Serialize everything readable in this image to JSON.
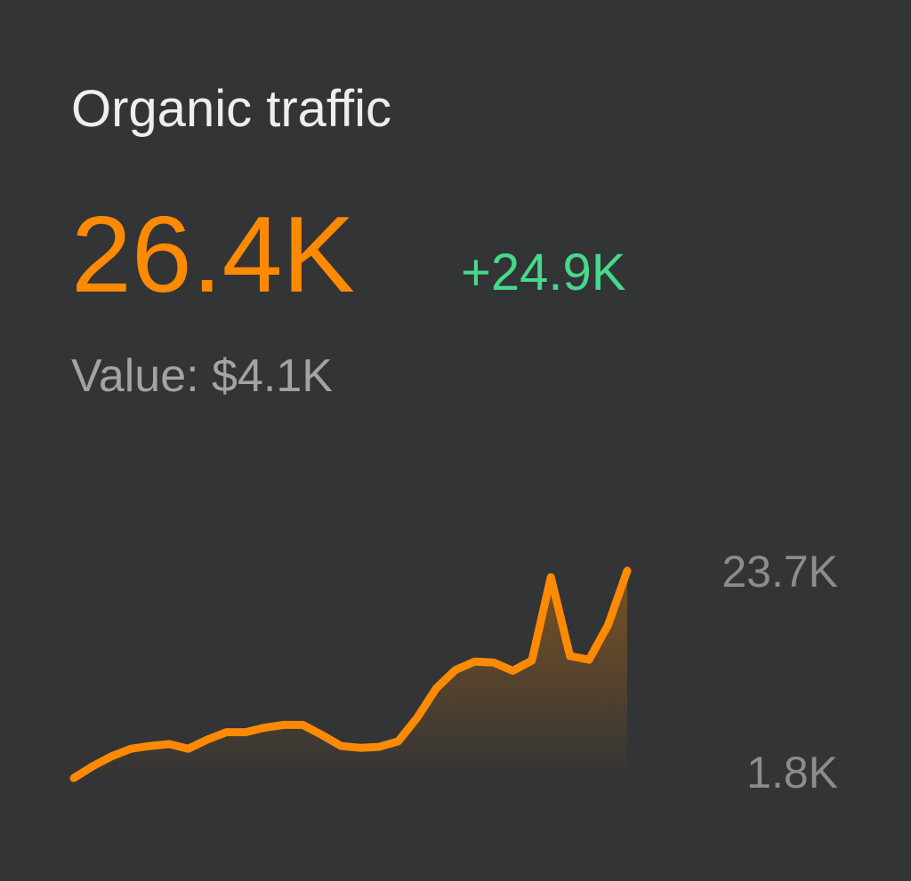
{
  "chart_data": {
    "type": "area",
    "title": "Organic traffic",
    "headline": "26.4K",
    "change": "+24.9K",
    "subtitle": "Value: $4.1K",
    "values": [
      1100,
      2400,
      3500,
      4300,
      4600,
      4800,
      4300,
      5300,
      6100,
      6100,
      6600,
      6900,
      6900,
      5800,
      4600,
      4400,
      4500,
      5100,
      7700,
      10900,
      12900,
      13800,
      13700,
      12800,
      13900,
      23000,
      14400,
      14000,
      17800,
      23700
    ],
    "color": "#ff8a00",
    "ylim": [
      1800,
      23700
    ],
    "yticks": [
      {
        "value": 1800,
        "label": "1.8K"
      },
      {
        "value": 23700,
        "label": "23.7K"
      }
    ]
  }
}
